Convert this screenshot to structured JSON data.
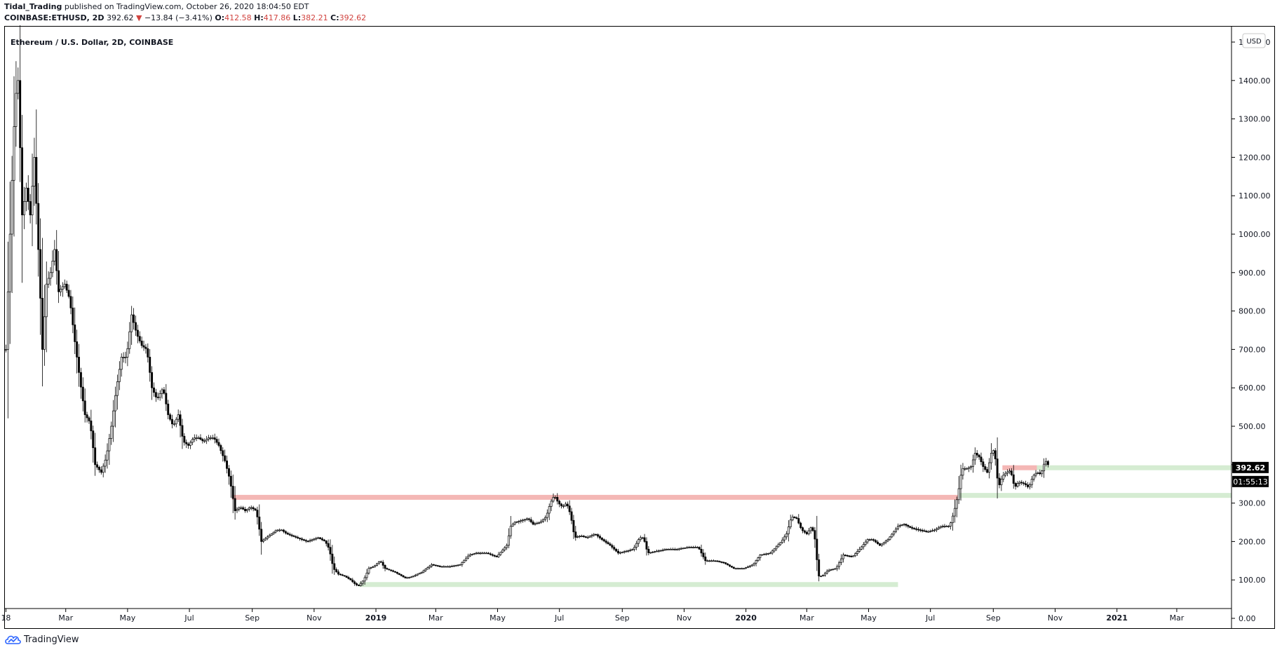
{
  "header": {
    "author": "Tidal_Trading",
    "published": "published on TradingView.com, October 26, 2020 18:04:50 EDT",
    "symbol": "COINBASE:ETHUSD, 2D",
    "last": "392.62",
    "change_arrow": "▼",
    "change": "−13.84 (−3.41%)",
    "o_label": "O:",
    "o_value": "412.58",
    "h_label": "H:",
    "h_value": "417.86",
    "l_label": "L:",
    "l_value": "382.21",
    "c_label": "C:",
    "c_value": "392.62"
  },
  "footer": {
    "brand": "TradingView",
    "logo_icon": "tradingview-cloud-icon"
  },
  "colors": {
    "up": "#ffffff",
    "down": "#000000",
    "resistance": "#f4b7b5",
    "support": "#d5ecd2",
    "text": "#131722",
    "change_red": "#d1433f"
  },
  "chart_data": {
    "type": "candlestick",
    "title": "Ethereum / U.S. Dollar, 2D, COINBASE",
    "currency_label": "USD",
    "ylim": [
      -50,
      1550
    ],
    "y_ticks": [
      0,
      100,
      200,
      300,
      400,
      500,
      600,
      700,
      800,
      900,
      1000,
      1100,
      1200,
      1300,
      1400,
      1500
    ],
    "y_tick_labels": [
      "0.00",
      "100.00",
      "200.00",
      "300.00",
      "400.00",
      "500.00",
      "600.00",
      "700.00",
      "800.00",
      "900.00",
      "1000.00",
      "1100.00",
      "1200.00",
      "1300.00",
      "1400.00",
      "1500.00"
    ],
    "x_range": [
      "2017-12-31",
      "2021-04-24"
    ],
    "x_ticks": [
      {
        "date": "2018-01-01",
        "label": "18"
      },
      {
        "date": "2018-03-01",
        "label": "Mar"
      },
      {
        "date": "2018-05-01",
        "label": "May"
      },
      {
        "date": "2018-07-01",
        "label": "Jul"
      },
      {
        "date": "2018-09-01",
        "label": "Sep"
      },
      {
        "date": "2018-11-01",
        "label": "Nov"
      },
      {
        "date": "2019-01-01",
        "label": "2019",
        "bold": true
      },
      {
        "date": "2019-03-01",
        "label": "Mar"
      },
      {
        "date": "2019-05-01",
        "label": "May"
      },
      {
        "date": "2019-07-01",
        "label": "Jul"
      },
      {
        "date": "2019-09-01",
        "label": "Sep"
      },
      {
        "date": "2019-11-01",
        "label": "Nov"
      },
      {
        "date": "2020-01-01",
        "label": "2020",
        "bold": true
      },
      {
        "date": "2020-03-01",
        "label": "Mar"
      },
      {
        "date": "2020-05-01",
        "label": "May"
      },
      {
        "date": "2020-07-01",
        "label": "Jul"
      },
      {
        "date": "2020-09-01",
        "label": "Sep"
      },
      {
        "date": "2020-11-01",
        "label": "Nov"
      },
      {
        "date": "2021-01-01",
        "label": "2021",
        "bold": true
      },
      {
        "date": "2021-03-01",
        "label": "Mar"
      }
    ],
    "last_price": 392.62,
    "last_price_label": "392.62",
    "countdown_label": "01:55:13",
    "countdown_price": 350,
    "price_series": [
      {
        "date": "2018-01-01",
        "value": 700
      },
      {
        "date": "2018-01-05",
        "value": 1000
      },
      {
        "date": "2018-01-10",
        "value": 1350
      },
      {
        "date": "2018-01-13",
        "value": 1400
      },
      {
        "date": "2018-01-17",
        "value": 1050
      },
      {
        "date": "2018-01-21",
        "value": 1120
      },
      {
        "date": "2018-01-25",
        "value": 1050
      },
      {
        "date": "2018-01-29",
        "value": 1200
      },
      {
        "date": "2018-02-03",
        "value": 900
      },
      {
        "date": "2018-02-06",
        "value": 700
      },
      {
        "date": "2018-02-10",
        "value": 870
      },
      {
        "date": "2018-02-14",
        "value": 900
      },
      {
        "date": "2018-02-18",
        "value": 960
      },
      {
        "date": "2018-02-22",
        "value": 850
      },
      {
        "date": "2018-02-28",
        "value": 870
      },
      {
        "date": "2018-03-05",
        "value": 830
      },
      {
        "date": "2018-03-10",
        "value": 720
      },
      {
        "date": "2018-03-15",
        "value": 620
      },
      {
        "date": "2018-03-20",
        "value": 530
      },
      {
        "date": "2018-03-25",
        "value": 510
      },
      {
        "date": "2018-03-30",
        "value": 400
      },
      {
        "date": "2018-04-05",
        "value": 380
      },
      {
        "date": "2018-04-10",
        "value": 420
      },
      {
        "date": "2018-04-15",
        "value": 500
      },
      {
        "date": "2018-04-20",
        "value": 600
      },
      {
        "date": "2018-04-25",
        "value": 680
      },
      {
        "date": "2018-04-30",
        "value": 680
      },
      {
        "date": "2018-05-05",
        "value": 790
      },
      {
        "date": "2018-05-10",
        "value": 740
      },
      {
        "date": "2018-05-15",
        "value": 710
      },
      {
        "date": "2018-05-20",
        "value": 700
      },
      {
        "date": "2018-05-25",
        "value": 600
      },
      {
        "date": "2018-05-30",
        "value": 570
      },
      {
        "date": "2018-06-05",
        "value": 600
      },
      {
        "date": "2018-06-10",
        "value": 530
      },
      {
        "date": "2018-06-15",
        "value": 500
      },
      {
        "date": "2018-06-20",
        "value": 530
      },
      {
        "date": "2018-06-25",
        "value": 460
      },
      {
        "date": "2018-06-30",
        "value": 450
      },
      {
        "date": "2018-07-05",
        "value": 470
      },
      {
        "date": "2018-07-10",
        "value": 470
      },
      {
        "date": "2018-07-15",
        "value": 460
      },
      {
        "date": "2018-07-20",
        "value": 470
      },
      {
        "date": "2018-07-25",
        "value": 470
      },
      {
        "date": "2018-07-30",
        "value": 450
      },
      {
        "date": "2018-08-05",
        "value": 410
      },
      {
        "date": "2018-08-10",
        "value": 360
      },
      {
        "date": "2018-08-15",
        "value": 280
      },
      {
        "date": "2018-08-20",
        "value": 290
      },
      {
        "date": "2018-08-25",
        "value": 280
      },
      {
        "date": "2018-08-30",
        "value": 290
      },
      {
        "date": "2018-09-05",
        "value": 280
      },
      {
        "date": "2018-09-10",
        "value": 200
      },
      {
        "date": "2018-09-15",
        "value": 210
      },
      {
        "date": "2018-09-20",
        "value": 220
      },
      {
        "date": "2018-09-25",
        "value": 230
      },
      {
        "date": "2018-09-30",
        "value": 230
      },
      {
        "date": "2018-10-05",
        "value": 220
      },
      {
        "date": "2018-10-15",
        "value": 210
      },
      {
        "date": "2018-10-25",
        "value": 200
      },
      {
        "date": "2018-11-05",
        "value": 210
      },
      {
        "date": "2018-11-12",
        "value": 200
      },
      {
        "date": "2018-11-16",
        "value": 180
      },
      {
        "date": "2018-11-20",
        "value": 130
      },
      {
        "date": "2018-11-25",
        "value": 115
      },
      {
        "date": "2018-12-01",
        "value": 110
      },
      {
        "date": "2018-12-07",
        "value": 100
      },
      {
        "date": "2018-12-12",
        "value": 88
      },
      {
        "date": "2018-12-15",
        "value": 85
      },
      {
        "date": "2018-12-20",
        "value": 100
      },
      {
        "date": "2018-12-25",
        "value": 130
      },
      {
        "date": "2018-12-30",
        "value": 135
      },
      {
        "date": "2019-01-05",
        "value": 150
      },
      {
        "date": "2019-01-10",
        "value": 130
      },
      {
        "date": "2019-01-20",
        "value": 120
      },
      {
        "date": "2019-01-30",
        "value": 105
      },
      {
        "date": "2019-02-05",
        "value": 108
      },
      {
        "date": "2019-02-15",
        "value": 120
      },
      {
        "date": "2019-02-25",
        "value": 140
      },
      {
        "date": "2019-03-05",
        "value": 135
      },
      {
        "date": "2019-03-15",
        "value": 135
      },
      {
        "date": "2019-03-25",
        "value": 140
      },
      {
        "date": "2019-04-03",
        "value": 165
      },
      {
        "date": "2019-04-10",
        "value": 170
      },
      {
        "date": "2019-04-20",
        "value": 170
      },
      {
        "date": "2019-04-30",
        "value": 160
      },
      {
        "date": "2019-05-10",
        "value": 190
      },
      {
        "date": "2019-05-14",
        "value": 240
      },
      {
        "date": "2019-05-18",
        "value": 250
      },
      {
        "date": "2019-05-25",
        "value": 255
      },
      {
        "date": "2019-05-31",
        "value": 260
      },
      {
        "date": "2019-06-05",
        "value": 245
      },
      {
        "date": "2019-06-12",
        "value": 250
      },
      {
        "date": "2019-06-18",
        "value": 265
      },
      {
        "date": "2019-06-22",
        "value": 300
      },
      {
        "date": "2019-06-26",
        "value": 320
      },
      {
        "date": "2019-06-30",
        "value": 300
      },
      {
        "date": "2019-07-04",
        "value": 290
      },
      {
        "date": "2019-07-08",
        "value": 300
      },
      {
        "date": "2019-07-12",
        "value": 270
      },
      {
        "date": "2019-07-16",
        "value": 210
      },
      {
        "date": "2019-07-22",
        "value": 215
      },
      {
        "date": "2019-07-28",
        "value": 210
      },
      {
        "date": "2019-08-05",
        "value": 220
      },
      {
        "date": "2019-08-12",
        "value": 205
      },
      {
        "date": "2019-08-20",
        "value": 190
      },
      {
        "date": "2019-08-28",
        "value": 170
      },
      {
        "date": "2019-09-05",
        "value": 175
      },
      {
        "date": "2019-09-12",
        "value": 180
      },
      {
        "date": "2019-09-18",
        "value": 210
      },
      {
        "date": "2019-09-22",
        "value": 210
      },
      {
        "date": "2019-09-26",
        "value": 170
      },
      {
        "date": "2019-10-05",
        "value": 175
      },
      {
        "date": "2019-10-15",
        "value": 180
      },
      {
        "date": "2019-10-25",
        "value": 180
      },
      {
        "date": "2019-11-05",
        "value": 185
      },
      {
        "date": "2019-11-15",
        "value": 185
      },
      {
        "date": "2019-11-22",
        "value": 150
      },
      {
        "date": "2019-12-01",
        "value": 150
      },
      {
        "date": "2019-12-10",
        "value": 145
      },
      {
        "date": "2019-12-20",
        "value": 130
      },
      {
        "date": "2019-12-30",
        "value": 130
      },
      {
        "date": "2020-01-08",
        "value": 140
      },
      {
        "date": "2020-01-15",
        "value": 165
      },
      {
        "date": "2020-01-25",
        "value": 170
      },
      {
        "date": "2020-02-05",
        "value": 200
      },
      {
        "date": "2020-02-10",
        "value": 220
      },
      {
        "date": "2020-02-15",
        "value": 265
      },
      {
        "date": "2020-02-20",
        "value": 260
      },
      {
        "date": "2020-02-25",
        "value": 230
      },
      {
        "date": "2020-03-01",
        "value": 220
      },
      {
        "date": "2020-03-06",
        "value": 240
      },
      {
        "date": "2020-03-10",
        "value": 195
      },
      {
        "date": "2020-03-12",
        "value": 110
      },
      {
        "date": "2020-03-16",
        "value": 110
      },
      {
        "date": "2020-03-22",
        "value": 125
      },
      {
        "date": "2020-03-30",
        "value": 130
      },
      {
        "date": "2020-04-06",
        "value": 165
      },
      {
        "date": "2020-04-15",
        "value": 160
      },
      {
        "date": "2020-04-22",
        "value": 180
      },
      {
        "date": "2020-04-30",
        "value": 205
      },
      {
        "date": "2020-05-05",
        "value": 205
      },
      {
        "date": "2020-05-12",
        "value": 190
      },
      {
        "date": "2020-05-20",
        "value": 205
      },
      {
        "date": "2020-05-30",
        "value": 240
      },
      {
        "date": "2020-06-05",
        "value": 245
      },
      {
        "date": "2020-06-12",
        "value": 235
      },
      {
        "date": "2020-06-20",
        "value": 230
      },
      {
        "date": "2020-06-28",
        "value": 225
      },
      {
        "date": "2020-07-05",
        "value": 230
      },
      {
        "date": "2020-07-12",
        "value": 240
      },
      {
        "date": "2020-07-20",
        "value": 240
      },
      {
        "date": "2020-07-24",
        "value": 275
      },
      {
        "date": "2020-07-28",
        "value": 320
      },
      {
        "date": "2020-08-01",
        "value": 390
      },
      {
        "date": "2020-08-06",
        "value": 390
      },
      {
        "date": "2020-08-10",
        "value": 395
      },
      {
        "date": "2020-08-14",
        "value": 430
      },
      {
        "date": "2020-08-18",
        "value": 420
      },
      {
        "date": "2020-08-22",
        "value": 395
      },
      {
        "date": "2020-08-26",
        "value": 380
      },
      {
        "date": "2020-08-30",
        "value": 430
      },
      {
        "date": "2020-09-02",
        "value": 440
      },
      {
        "date": "2020-09-04",
        "value": 390
      },
      {
        "date": "2020-09-06",
        "value": 340
      },
      {
        "date": "2020-09-10",
        "value": 370
      },
      {
        "date": "2020-09-14",
        "value": 380
      },
      {
        "date": "2020-09-18",
        "value": 385
      },
      {
        "date": "2020-09-22",
        "value": 340
      },
      {
        "date": "2020-09-26",
        "value": 355
      },
      {
        "date": "2020-10-02",
        "value": 350
      },
      {
        "date": "2020-10-06",
        "value": 340
      },
      {
        "date": "2020-10-10",
        "value": 370
      },
      {
        "date": "2020-10-14",
        "value": 380
      },
      {
        "date": "2020-10-18",
        "value": 375
      },
      {
        "date": "2020-10-22",
        "value": 410
      },
      {
        "date": "2020-10-24",
        "value": 407
      },
      {
        "date": "2020-10-26",
        "value": 392.62
      }
    ],
    "zones": [
      {
        "type": "resistance",
        "value": 315,
        "from": "2018-08-12",
        "to": "2020-07-28"
      },
      {
        "type": "support",
        "value": 88,
        "from": "2018-12-15",
        "to": "2020-05-30"
      },
      {
        "type": "support",
        "value": 320,
        "from": "2020-07-28",
        "to": "end"
      },
      {
        "type": "resistance",
        "value": 392,
        "from": "2020-09-10",
        "to": "2020-10-14"
      },
      {
        "type": "support",
        "value": 392,
        "from": "2020-10-14",
        "to": "end"
      }
    ]
  }
}
